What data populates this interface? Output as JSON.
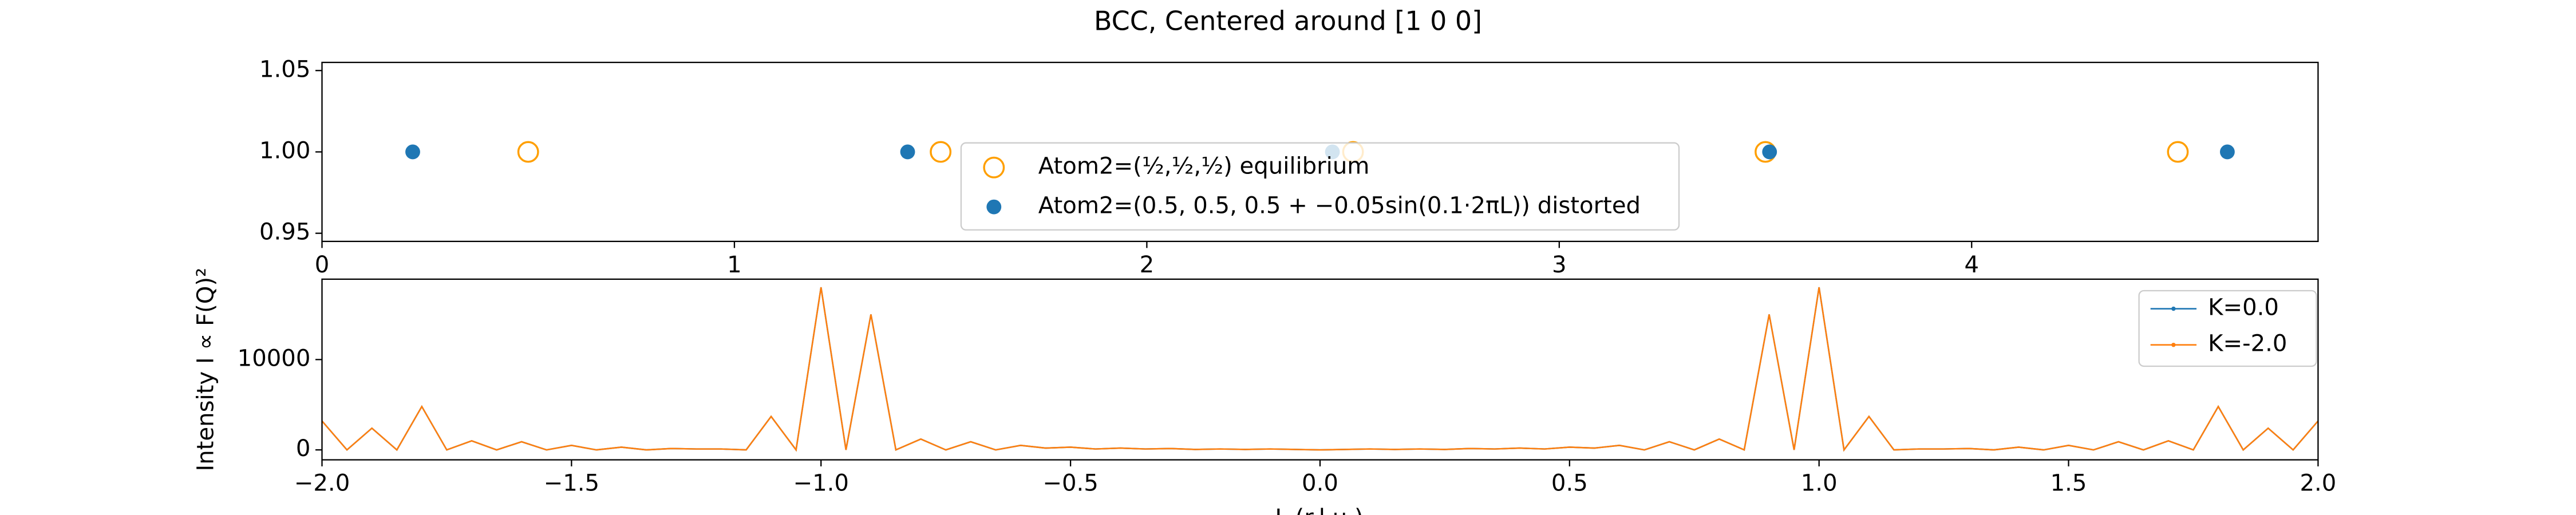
{
  "chart_data": [
    {
      "type": "scatter",
      "title": "BCC, Centered around [1 0 0]",
      "xlim": [
        0,
        4.84
      ],
      "xticks": [
        0,
        1,
        2,
        3,
        4
      ],
      "ylim": [
        0.945,
        1.055
      ],
      "yticks": [
        {
          "value": 0.95,
          "label": "0.95"
        },
        {
          "value": 1.0,
          "label": "1.00"
        },
        {
          "value": 1.05,
          "label": "1.05"
        }
      ],
      "legend": "center",
      "series": [
        {
          "name": "Atom2=(½,½,½) equilibrium",
          "color": "#ff9f00",
          "marker": "open",
          "x": [
            0.5,
            1.5,
            2.5,
            3.5,
            4.5
          ],
          "values": [
            1.0,
            1.0,
            1.0,
            1.0,
            1.0
          ]
        },
        {
          "name": "Atom2=(0.5, 0.5, 0.5 + −0.05sin(0.1·2πL)) distorted",
          "color": "#1f77b4",
          "marker": "filled",
          "x": [
            0.22,
            1.42,
            2.45,
            3.51,
            4.62
          ],
          "values": [
            1.0,
            1.0,
            1.0,
            1.0,
            1.0
          ]
        }
      ]
    },
    {
      "type": "line",
      "x_label": "L (r.l.u.)",
      "y_label": "Intensity I ∝ F(Q)²",
      "xlim": [
        -2,
        2
      ],
      "xticks": [
        {
          "value": -2,
          "label": "−2.0"
        },
        {
          "value": -1.5,
          "label": "−1.5"
        },
        {
          "value": -1,
          "label": "−1.0"
        },
        {
          "value": -0.5,
          "label": "−0.5"
        },
        {
          "value": 0,
          "label": "0.0"
        },
        {
          "value": 0.5,
          "label": "0.5"
        },
        {
          "value": 1,
          "label": "1.0"
        },
        {
          "value": 1.5,
          "label": "1.5"
        },
        {
          "value": 2,
          "label": "2.0"
        }
      ],
      "ylim": [
        -1100,
        18900
      ],
      "yticks": [
        0,
        10000
      ],
      "legend": "upper right",
      "x": [
        -2.0,
        -1.95,
        -1.9,
        -1.85,
        -1.8,
        -1.75,
        -1.7,
        -1.65,
        -1.6,
        -1.55,
        -1.5,
        -1.45,
        -1.4,
        -1.35,
        -1.3,
        -1.25,
        -1.2,
        -1.15,
        -1.1,
        -1.05,
        -1.0,
        -0.95,
        -0.9,
        -0.85,
        -0.8,
        -0.75,
        -0.7,
        -0.65,
        -0.6,
        -0.55,
        -0.5,
        -0.45,
        -0.4,
        -0.35,
        -0.3,
        -0.25,
        -0.2,
        -0.15,
        -0.1,
        -0.05,
        0,
        0.05,
        0.1,
        0.15,
        0.2,
        0.25,
        0.3,
        0.35,
        0.4,
        0.45,
        0.5,
        0.55,
        0.6,
        0.65,
        0.7,
        0.75,
        0.8,
        0.85,
        0.9,
        0.95,
        1.0,
        1.05,
        1.1,
        1.15,
        1.2,
        1.25,
        1.3,
        1.35,
        1.4,
        1.45,
        1.5,
        1.55,
        1.6,
        1.65,
        1.7,
        1.75,
        1.8,
        1.85,
        1.9,
        1.95,
        2.0
      ],
      "series": [
        {
          "name": "K=0.0",
          "color": "#1f77b4",
          "values": [
            3200,
            0,
            2400,
            0,
            4800,
            0,
            1000,
            0,
            900,
            0,
            500,
            0,
            300,
            0,
            150,
            100,
            100,
            0,
            3700,
            0,
            18000,
            0,
            15000,
            0,
            1200,
            0,
            900,
            0,
            500,
            200,
            300,
            100,
            200,
            100,
            150,
            50,
            100,
            50,
            100,
            50,
            0,
            50,
            100,
            50,
            100,
            50,
            150,
            100,
            200,
            100,
            300,
            200,
            500,
            0,
            900,
            0,
            1200,
            0,
            15000,
            0,
            18000,
            0,
            3700,
            0,
            100,
            100,
            150,
            0,
            300,
            0,
            500,
            0,
            900,
            0,
            1000,
            0,
            4800,
            0,
            2400,
            0,
            3200
          ]
        },
        {
          "name": "K=-2.0",
          "color": "#ff7f0e",
          "values": [
            3200,
            0,
            2400,
            0,
            4800,
            0,
            1000,
            0,
            900,
            0,
            500,
            0,
            300,
            0,
            150,
            100,
            100,
            0,
            3700,
            0,
            18000,
            0,
            15000,
            0,
            1200,
            0,
            900,
            0,
            500,
            200,
            300,
            100,
            200,
            100,
            150,
            50,
            100,
            50,
            100,
            50,
            0,
            50,
            100,
            50,
            100,
            50,
            150,
            100,
            200,
            100,
            300,
            200,
            500,
            0,
            900,
            0,
            1200,
            0,
            15000,
            0,
            18000,
            0,
            3700,
            0,
            100,
            100,
            150,
            0,
            300,
            0,
            500,
            0,
            900,
            0,
            1000,
            0,
            4800,
            0,
            2400,
            0,
            3200
          ]
        }
      ]
    }
  ]
}
